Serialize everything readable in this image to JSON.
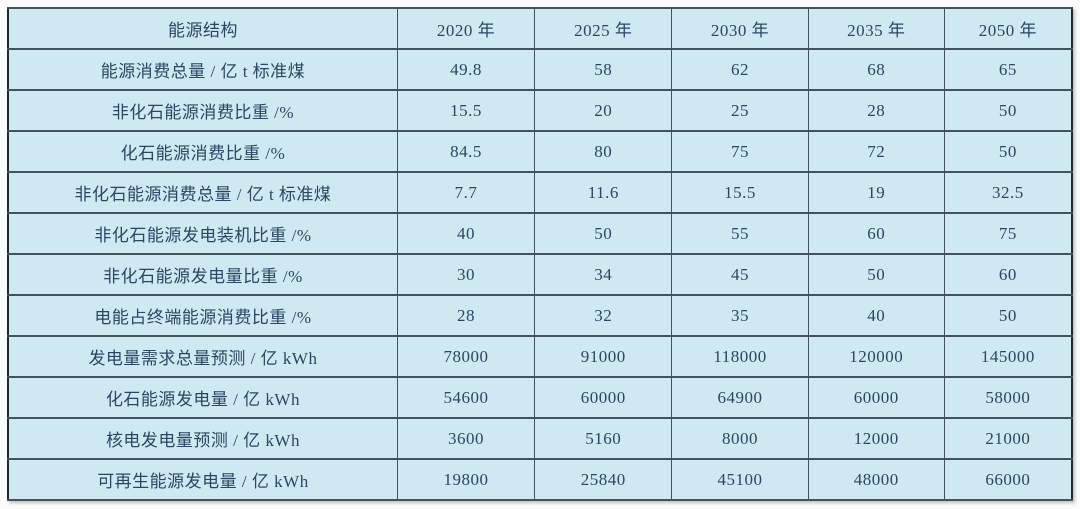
{
  "chart_data": {
    "type": "table",
    "title": "",
    "columns": [
      "能源结构",
      "2020 年",
      "2025 年",
      "2030 年",
      "2035 年",
      "2050 年"
    ],
    "rows": [
      {
        "label": "能源消费总量 / 亿 t 标准煤",
        "values": [
          49.8,
          58,
          62,
          68,
          65
        ]
      },
      {
        "label": "非化石能源消费比重 /%",
        "values": [
          15.5,
          20,
          25,
          28,
          50
        ]
      },
      {
        "label": "化石能源消费比重 /%",
        "values": [
          84.5,
          80,
          75,
          72,
          50
        ]
      },
      {
        "label": "非化石能源消费总量 / 亿 t 标准煤",
        "values": [
          7.7,
          11.6,
          15.5,
          19,
          32.5
        ]
      },
      {
        "label": "非化石能源发电装机比重 /%",
        "values": [
          40,
          50,
          55,
          60,
          75
        ]
      },
      {
        "label": "非化石能源发电量比重 /%",
        "values": [
          30,
          34,
          45,
          50,
          60
        ]
      },
      {
        "label": "电能占终端能源消费比重 /%",
        "values": [
          28,
          32,
          35,
          40,
          50
        ]
      },
      {
        "label": "发电量需求总量预测 / 亿 kWh",
        "values": [
          78000,
          91000,
          118000,
          120000,
          145000
        ]
      },
      {
        "label": "化石能源发电量 / 亿 kWh",
        "values": [
          54600,
          60000,
          64900,
          60000,
          58000
        ]
      },
      {
        "label": "核电发电量预测 / 亿 kWh",
        "values": [
          3600,
          5160,
          8000,
          12000,
          21000
        ]
      },
      {
        "label": "可再生能源发电量 / 亿 kWh",
        "values": [
          19800,
          25840,
          45100,
          48000,
          66000
        ]
      }
    ],
    "layout": {
      "grid": true,
      "first_column_width_pct": 36.6,
      "value_column_width_pct": 12.68
    },
    "colors": {
      "cell_background": "#cfe9f3",
      "grid_line": "#44525a",
      "outer_border": "#20282d",
      "text": "#2a4663"
    }
  }
}
